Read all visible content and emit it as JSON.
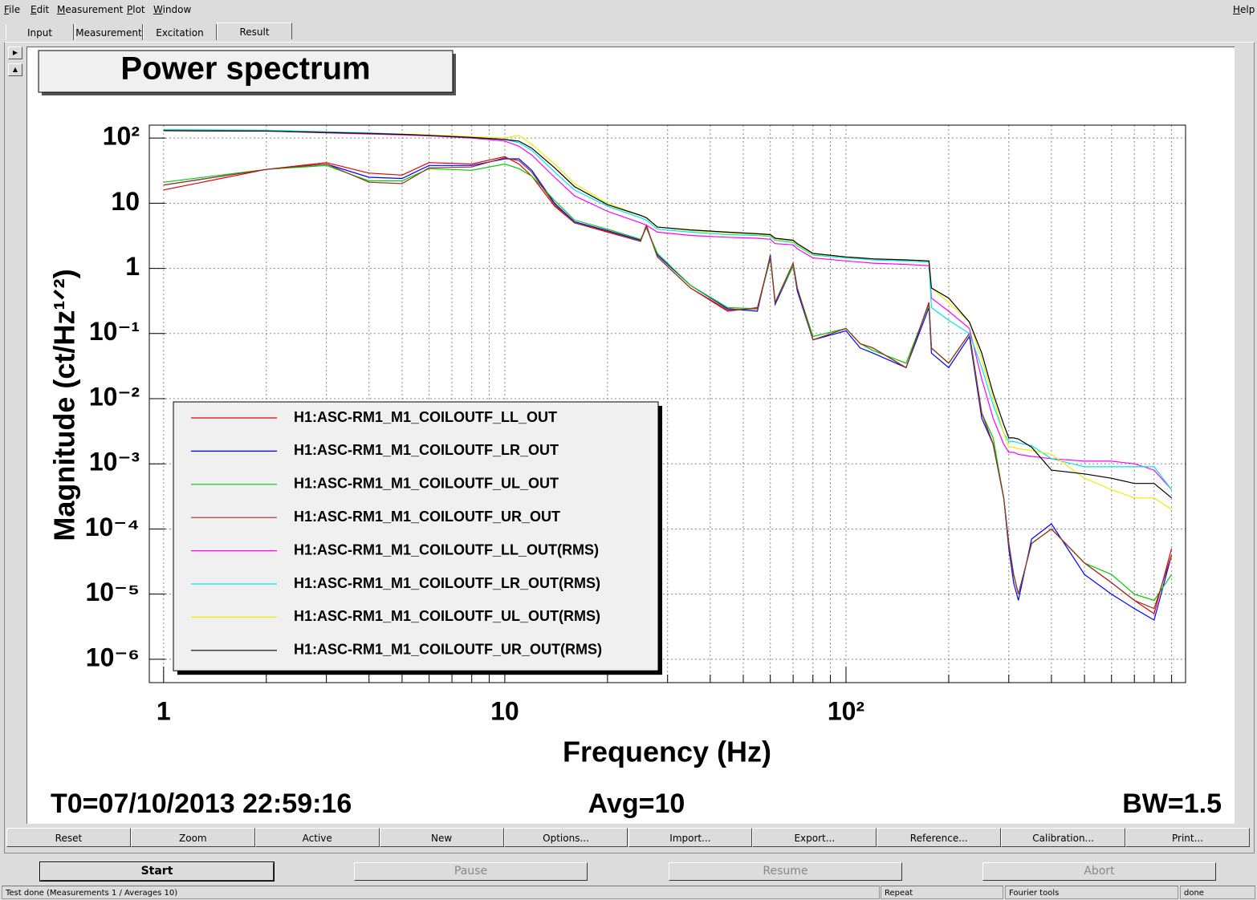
{
  "menu": [
    "File",
    "Edit",
    "Measurement",
    "Plot",
    "Window"
  ],
  "help": "Help",
  "tabs": [
    "Input",
    "Measurement",
    "Excitation",
    "Result"
  ],
  "chart_data": {
    "type": "line",
    "title": "Power spectrum",
    "xlabel": "Frequency (Hz)",
    "ylabel": "Magnitude (ct/Hz¹ᐟ²)",
    "log_x": true,
    "log_y": true,
    "grid": true,
    "legend": "lower left",
    "xlim": [
      0.908,
      989
    ],
    "ylim": [
      4.38e-07,
      158
    ],
    "xticks": [
      1,
      10,
      {
        "value": 100,
        "label": "10²"
      }
    ],
    "xminorticks": [
      2,
      3,
      4,
      5,
      6,
      7,
      8,
      9,
      20,
      30,
      40,
      50,
      60,
      70,
      80,
      90,
      200,
      300,
      400,
      500,
      600,
      700,
      800,
      900
    ],
    "yticks": [
      {
        "value": 1e-06,
        "label": "10⁻⁶"
      },
      {
        "value": 1e-05,
        "label": "10⁻⁵"
      },
      {
        "value": 0.0001,
        "label": "10⁻⁴"
      },
      {
        "value": 0.001,
        "label": "10⁻³"
      },
      {
        "value": 0.01,
        "label": "10⁻²"
      },
      {
        "value": 0.1,
        "label": "10⁻¹"
      },
      1,
      10,
      {
        "value": 100,
        "label": "10²"
      }
    ],
    "x": [
      1,
      2,
      3,
      4,
      5,
      6,
      8,
      10,
      11,
      12,
      14,
      16,
      20,
      25,
      26,
      28,
      35,
      45,
      55,
      60,
      62,
      70,
      72,
      80,
      100,
      110,
      120,
      150,
      175,
      178,
      200,
      230,
      250,
      270,
      290,
      300,
      310,
      320,
      350,
      400,
      500,
      600,
      700,
      800,
      900
    ],
    "series": [
      {
        "name": "H1:ASC-RM1_M1_COILOUTF_LL_OUT",
        "color": "#e00000",
        "values": [
          16,
          33,
          42,
          29,
          27,
          42,
          40,
          52,
          40,
          26,
          9,
          5,
          3.6,
          2.6,
          4.6,
          1.5,
          0.5,
          0.22,
          0.25,
          1.5,
          0.3,
          1.2,
          0.5,
          0.08,
          0.12,
          0.07,
          0.06,
          0.03,
          0.3,
          0.06,
          0.035,
          0.1,
          0.006,
          0.002,
          0.0003,
          6e-05,
          2e-05,
          1e-05,
          6e-05,
          0.0001,
          3e-05,
          1.5e-05,
          8e-06,
          5e-06,
          5e-05
        ]
      },
      {
        "name": "H1:ASC-RM1_M1_COILOUTF_LR_OUT",
        "color": "#0000ff",
        "values": [
          19,
          33,
          40,
          25,
          24,
          38,
          38,
          48,
          48,
          32,
          10,
          5.2,
          3.8,
          2.7,
          4.3,
          1.6,
          0.55,
          0.24,
          0.22,
          1.6,
          0.28,
          1.1,
          0.45,
          0.08,
          0.11,
          0.06,
          0.05,
          0.03,
          0.25,
          0.05,
          0.03,
          0.09,
          0.005,
          0.002,
          0.0003,
          5e-05,
          1.5e-05,
          8e-06,
          7e-05,
          0.00012,
          2e-05,
          1e-05,
          6e-06,
          4e-06,
          4e-05
        ]
      },
      {
        "name": "H1:ASC-RM1_M1_COILOUTF_UL_OUT",
        "color": "#00cc00",
        "values": [
          21,
          33,
          38,
          22,
          22,
          34,
          32,
          40,
          34,
          26,
          11,
          5.5,
          4,
          2.8,
          4.2,
          1.7,
          0.55,
          0.25,
          0.24,
          1.4,
          0.3,
          1.1,
          0.5,
          0.09,
          0.12,
          0.07,
          0.055,
          0.035,
          0.28,
          0.06,
          0.035,
          0.1,
          0.006,
          0.0025,
          0.0003,
          6e-05,
          2e-05,
          1e-05,
          6e-05,
          0.0001,
          3e-05,
          2e-05,
          1e-05,
          8e-06,
          2e-05
        ]
      },
      {
        "name": "H1:ASC-RM1_M1_COILOUTF_UR_OUT",
        "color": "#993322",
        "values": [
          19,
          33,
          40,
          21,
          20,
          35,
          36,
          50,
          45,
          30,
          9.5,
          5,
          3.7,
          2.6,
          4.4,
          1.5,
          0.5,
          0.23,
          0.24,
          1.5,
          0.3,
          1.2,
          0.5,
          0.08,
          0.12,
          0.07,
          0.06,
          0.03,
          0.3,
          0.06,
          0.035,
          0.1,
          0.006,
          0.002,
          0.0003,
          6e-05,
          2e-05,
          1e-05,
          6e-05,
          0.0001,
          3e-05,
          1.5e-05,
          8e-06,
          6e-06,
          4e-05
        ]
      },
      {
        "name": "H1:ASC-RM1_M1_COILOUTF_LL_OUT(RMS)",
        "color": "#ff00ff",
        "values": [
          130,
          128,
          120,
          115,
          112,
          108,
          100,
          90,
          75,
          55,
          25,
          13,
          7.5,
          5,
          4.6,
          3.6,
          3.2,
          3,
          2.9,
          2.8,
          2.4,
          2.3,
          2,
          1.45,
          1.3,
          1.25,
          1.2,
          1.15,
          1.1,
          0.35,
          0.22,
          0.12,
          0.02,
          0.005,
          0.002,
          0.0015,
          0.0015,
          0.0014,
          0.0013,
          0.0012,
          0.0011,
          0.0011,
          0.001,
          0.0008,
          0.0004
        ]
      },
      {
        "name": "H1:ASC-RM1_M1_COILOUTF_LR_OUT(RMS)",
        "color": "#00e5ee",
        "values": [
          135,
          132,
          125,
          120,
          115,
          110,
          102,
          95,
          85,
          65,
          30,
          16,
          9,
          6,
          5.5,
          4,
          3.6,
          3.3,
          3.2,
          3.1,
          2.7,
          2.5,
          2.2,
          1.6,
          1.45,
          1.4,
          1.35,
          1.3,
          1.25,
          0.25,
          0.16,
          0.1,
          0.03,
          0.008,
          0.003,
          0.0022,
          0.0022,
          0.0021,
          0.0019,
          0.0012,
          0.0009,
          0.0009,
          0.0009,
          0.0009,
          0.0004
        ]
      },
      {
        "name": "H1:ASC-RM1_M1_COILOUTF_UL_OUT(RMS)",
        "color": "#eeee00",
        "values": [
          130,
          128,
          122,
          118,
          115,
          112,
          105,
          100,
          110,
          80,
          40,
          20,
          10,
          6.5,
          6,
          4.3,
          3.8,
          3.5,
          3.3,
          3.2,
          2.8,
          2.6,
          2.3,
          1.65,
          1.5,
          1.45,
          1.4,
          1.35,
          1.3,
          0.5,
          0.3,
          0.15,
          0.04,
          0.01,
          0.003,
          0.0018,
          0.0018,
          0.0017,
          0.0016,
          0.0014,
          0.0006,
          0.0004,
          0.0003,
          0.0003,
          0.0002
        ]
      },
      {
        "name": "H1:ASC-RM1_M1_COILOUTF_UR_OUT(RMS)",
        "color": "#000000",
        "values": [
          130,
          128,
          122,
          118,
          114,
          110,
          102,
          95,
          90,
          70,
          35,
          18,
          9.5,
          6.5,
          6,
          4.3,
          3.9,
          3.6,
          3.4,
          3.3,
          2.9,
          2.7,
          2.4,
          1.7,
          1.5,
          1.45,
          1.4,
          1.35,
          1.3,
          0.5,
          0.35,
          0.15,
          0.05,
          0.012,
          0.004,
          0.0025,
          0.0025,
          0.0024,
          0.0018,
          0.0008,
          0.0007,
          0.0006,
          0.0005,
          0.0005,
          0.0003
        ]
      }
    ],
    "annotations": [
      "T0=07/10/2013 22:59:16",
      "Avg=10",
      "BW=1.5"
    ]
  },
  "plot_buttons": [
    "Reset",
    "Zoom",
    "Active",
    "New",
    "Options...",
    "Import...",
    "Export...",
    "Reference...",
    "Calibration...",
    "Print..."
  ],
  "control_buttons": [
    "Start",
    "Pause",
    "Resume",
    "Abort"
  ],
  "status": [
    "Test done (Measurements 1 / Averages 10)",
    "Repeat",
    "Fourier tools",
    "done"
  ]
}
